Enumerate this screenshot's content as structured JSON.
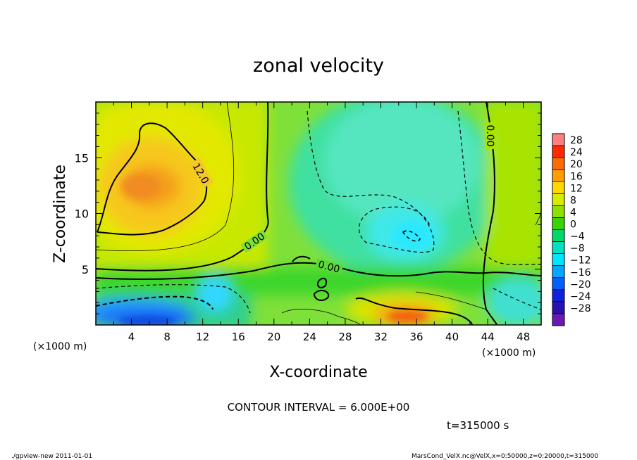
{
  "chart_data": {
    "type": "heatmap",
    "title": "zonal velocity",
    "xlabel": "X-coordinate",
    "ylabel": "Z-coordinate",
    "x_unit_label": "(×1000 m)",
    "y_unit_label": "(×1000 m)",
    "xlim": [
      0,
      50
    ],
    "ylim": [
      0,
      20
    ],
    "x_ticks": [
      "4",
      "8",
      "12",
      "16",
      "20",
      "24",
      "28",
      "32",
      "36",
      "40",
      "44",
      "48"
    ],
    "y_ticks": [
      "5",
      "10",
      "15"
    ],
    "colorbar_levels": [
      "28",
      "24",
      "20",
      "16",
      "12",
      "8",
      "4",
      "0",
      "−4",
      "−8",
      "−12",
      "−16",
      "−20",
      "−24",
      "−28"
    ],
    "colorbar_colors": [
      "#ff8080",
      "#ff2a00",
      "#ff6a00",
      "#ff9c00",
      "#ffd800",
      "#d8ea00",
      "#8fe000",
      "#36d400",
      "#00d86a",
      "#00e0c0",
      "#00e6ff",
      "#00a8ff",
      "#0060ff",
      "#1020e0",
      "#2a10b0",
      "#6a1ab0"
    ],
    "contour_labels": [
      "12.0",
      "0.00",
      "0.00",
      "0.00"
    ],
    "contour_interval": "CONTOUR INTERVAL = 6.000E+00",
    "time_label": "t=315000 s",
    "features": [
      {
        "name": "positive-max-upper-left",
        "x": 6,
        "z": 13,
        "value": 16
      },
      {
        "name": "positive-max-bottom",
        "x": 35,
        "z": 1,
        "value": 20
      },
      {
        "name": "negative-min-right",
        "x": 35,
        "z": 8,
        "value": -12
      },
      {
        "name": "negative-min-bottom-left",
        "x": 5,
        "z": 1,
        "value": -20
      }
    ]
  },
  "footer": {
    "left": "./gpview-new  2011-01-01",
    "right": "MarsCond_VelX.nc@VelX,x=0:50000,z=0:20000,t=315000"
  }
}
